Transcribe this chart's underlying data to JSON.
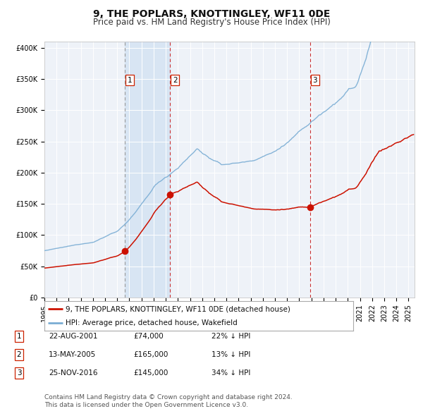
{
  "title": "9, THE POPLARS, KNOTTINGLEY, WF11 0DE",
  "subtitle": "Price paid vs. HM Land Registry's House Price Index (HPI)",
  "legend_line1": "9, THE POPLARS, KNOTTINGLEY, WF11 0DE (detached house)",
  "legend_line2": "HPI: Average price, detached house, Wakefield",
  "footnote1": "Contains HM Land Registry data © Crown copyright and database right 2024.",
  "footnote2": "This data is licensed under the Open Government Licence v3.0.",
  "transactions": [
    {
      "label": "1",
      "date": "22-AUG-2001",
      "price": 74000,
      "hpi_diff": "22% ↓ HPI"
    },
    {
      "label": "2",
      "date": "13-MAY-2005",
      "price": 165000,
      "hpi_diff": "13% ↓ HPI"
    },
    {
      "label": "3",
      "date": "25-NOV-2016",
      "price": 145000,
      "hpi_diff": "34% ↓ HPI"
    }
  ],
  "transaction_dates_decimal": [
    2001.64,
    2005.36,
    2016.9
  ],
  "shade_start": 2001.64,
  "shade_end": 2005.36,
  "ylim": [
    0,
    410000
  ],
  "xlim_start": 1995.0,
  "xlim_end": 2025.5,
  "background_color": "#ffffff",
  "plot_bg_color": "#eef2f8",
  "grid_color": "#ffffff",
  "hpi_line_color": "#7aadd4",
  "price_line_color": "#cc1100",
  "vline_dashed_color": "#cc3333",
  "vline1_color": "#999999",
  "shade_color": "#d8e5f3",
  "marker_color": "#cc1100",
  "label_box_color": "#ffffff",
  "label_box_edge": "#cc2200",
  "title_fontsize": 10,
  "subtitle_fontsize": 8.5,
  "tick_fontsize": 7,
  "legend_fontsize": 7.5,
  "footnote_fontsize": 6.5
}
